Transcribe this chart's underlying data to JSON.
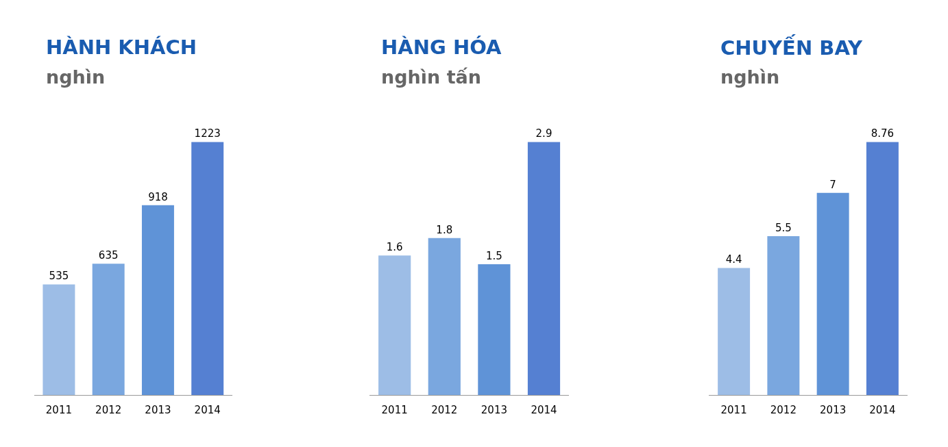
{
  "chart_data": [
    {
      "type": "bar",
      "title": "HÀNH KHÁCH",
      "subtitle": "nghìn",
      "categories": [
        "2011",
        "2012",
        "2013",
        "2014"
      ],
      "values": [
        535,
        635,
        918,
        1223
      ],
      "colors": [
        "#9dbde6",
        "#7aa7df",
        "#5f93d7",
        "#5580d2"
      ],
      "data_labels": true
    },
    {
      "type": "bar",
      "title": "HÀNG HÓA",
      "subtitle": "nghìn tấn",
      "categories": [
        "2011",
        "2012",
        "2013",
        "2014"
      ],
      "values": [
        1.6,
        1.8,
        1.5,
        2.9
      ],
      "colors": [
        "#9dbde6",
        "#7aa7df",
        "#5f93d7",
        "#5580d2"
      ],
      "data_labels": true
    },
    {
      "type": "bar",
      "title": "CHUYẾN BAY",
      "subtitle": "nghìn",
      "categories": [
        "2011",
        "2012",
        "2013",
        "2014"
      ],
      "values": [
        4.4,
        5.5,
        7,
        8.76
      ],
      "colors": [
        "#9dbde6",
        "#7aa7df",
        "#5f93d7",
        "#5580d2"
      ],
      "data_labels": true
    }
  ]
}
